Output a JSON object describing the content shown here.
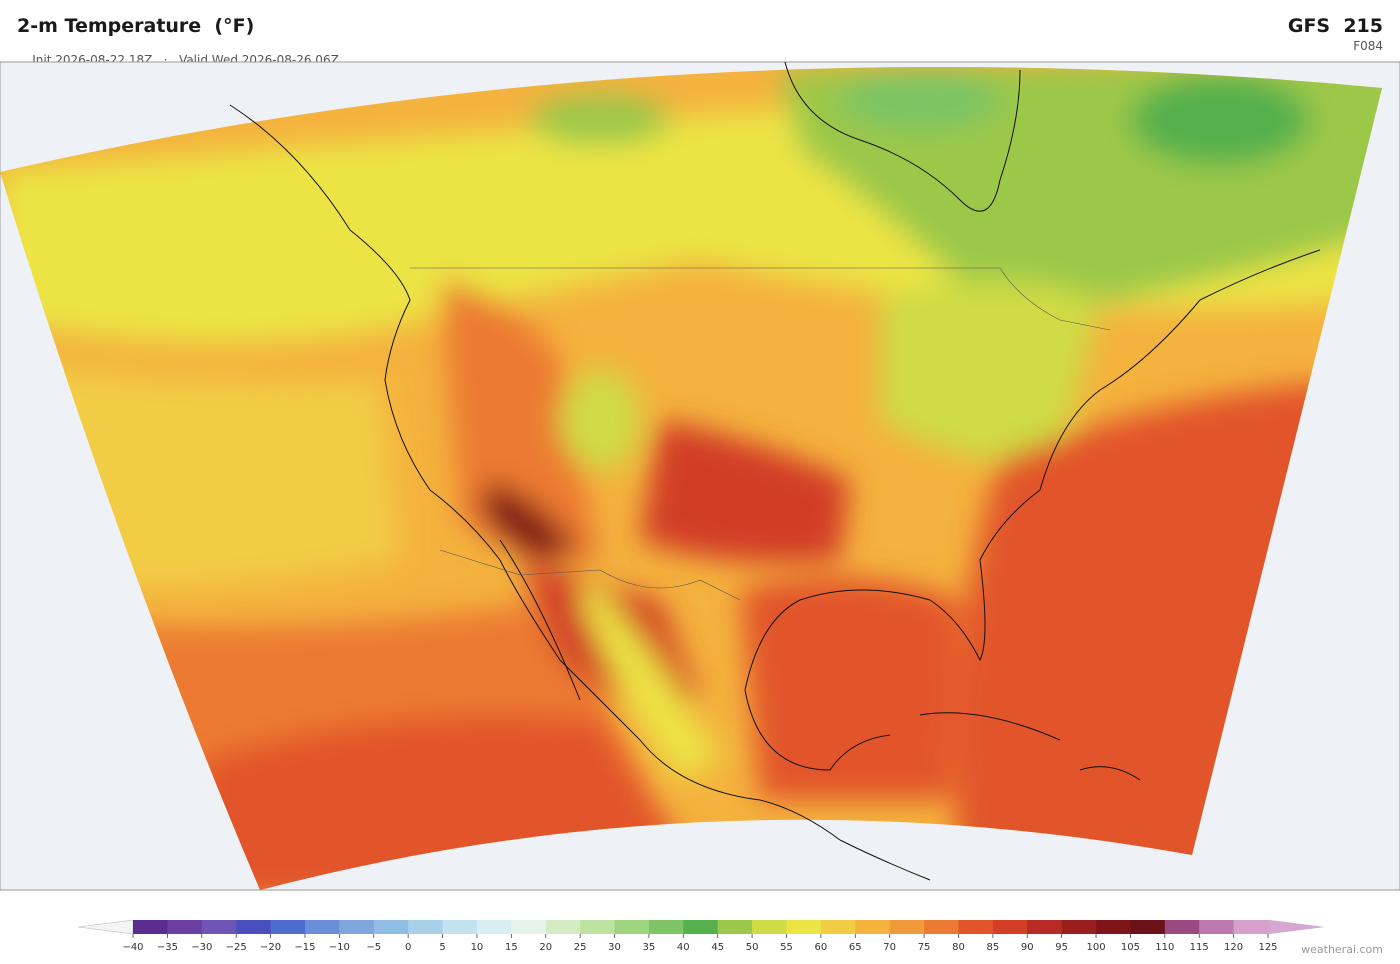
{
  "header": {
    "title": "2-m Temperature  (°F)",
    "init": "Init 2026-08-22 18Z",
    "separator": "·",
    "valid": "Valid Wed 2026-08-26 06Z",
    "model": "GFS  215",
    "forecast_hour": "F084"
  },
  "colorbar": {
    "ticks": [
      {
        "value": -40,
        "label": "−40"
      },
      {
        "value": -35,
        "label": "−35"
      },
      {
        "value": -30,
        "label": "−30"
      },
      {
        "value": -25,
        "label": "−25"
      },
      {
        "value": -20,
        "label": "−20"
      },
      {
        "value": -15,
        "label": "−15"
      },
      {
        "value": -10,
        "label": "−10"
      },
      {
        "value": -5,
        "label": "−5"
      },
      0,
      5,
      10,
      15,
      20,
      25,
      30,
      35,
      40,
      45,
      50,
      55,
      60,
      65,
      70,
      75,
      80,
      85,
      90,
      95,
      100,
      105,
      110,
      115,
      120,
      125
    ],
    "colors": [
      "#5b2d8e",
      "#6a3fa0",
      "#6f55b5",
      "#4a4fc0",
      "#4e6bd0",
      "#6b8ed8",
      "#7fa6dd",
      "#8fbde3",
      "#a8d0e8",
      "#c2e2ef",
      "#d8eef2",
      "#e6f4ea",
      "#d4ecc4",
      "#bde3a0",
      "#9fd47e",
      "#7cc465",
      "#55b04e",
      "#9bc84a",
      "#cfdc45",
      "#ece444",
      "#f2cc44",
      "#f4b23e",
      "#f09a3a",
      "#ec7a33",
      "#e2552b",
      "#d23e26",
      "#b82a22",
      "#9a1e1e",
      "#7f1518",
      "#6a1218",
      "#9a4a80",
      "#be78b0",
      "#d8a0cc"
    ],
    "under_color": "#f4f4f4",
    "over_color": "#d7a6d2"
  },
  "footer": {
    "watermark": "weatherai.com"
  }
}
